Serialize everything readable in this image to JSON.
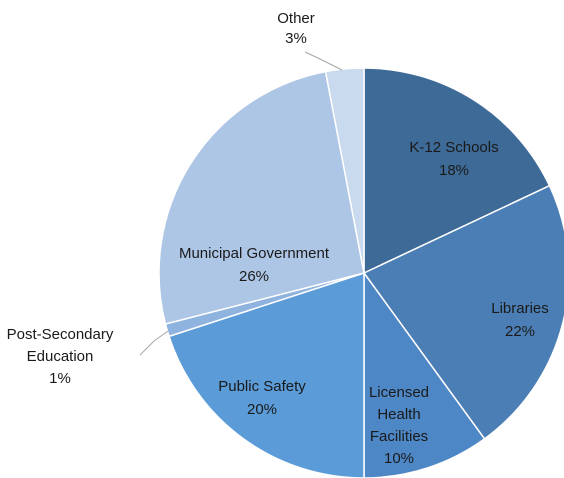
{
  "chart_data": {
    "type": "pie",
    "title": "",
    "slices": [
      {
        "label": "K-12 Schools",
        "value": 18,
        "display": "18%",
        "color": "#3e6a97"
      },
      {
        "label": "Libraries",
        "value": 22,
        "display": "22%",
        "color": "#4b7eb4"
      },
      {
        "label": "Licensed Health Facilities",
        "value": 10,
        "display": "10%",
        "color": "#4e87c6"
      },
      {
        "label": "Public Safety",
        "value": 20,
        "display": "20%",
        "color": "#5a9bd8"
      },
      {
        "label": "Post-Secondary Education",
        "value": 1,
        "display": "1%",
        "color": "#8eb3df"
      },
      {
        "label": "Municipal Government",
        "value": 26,
        "display": "26%",
        "color": "#adc6e6"
      },
      {
        "label": "Other",
        "value": 3,
        "display": "3%",
        "color": "#c9d9ee"
      }
    ],
    "start_angle": "12 o'clock",
    "direction": "clockwise",
    "legend": "none"
  }
}
